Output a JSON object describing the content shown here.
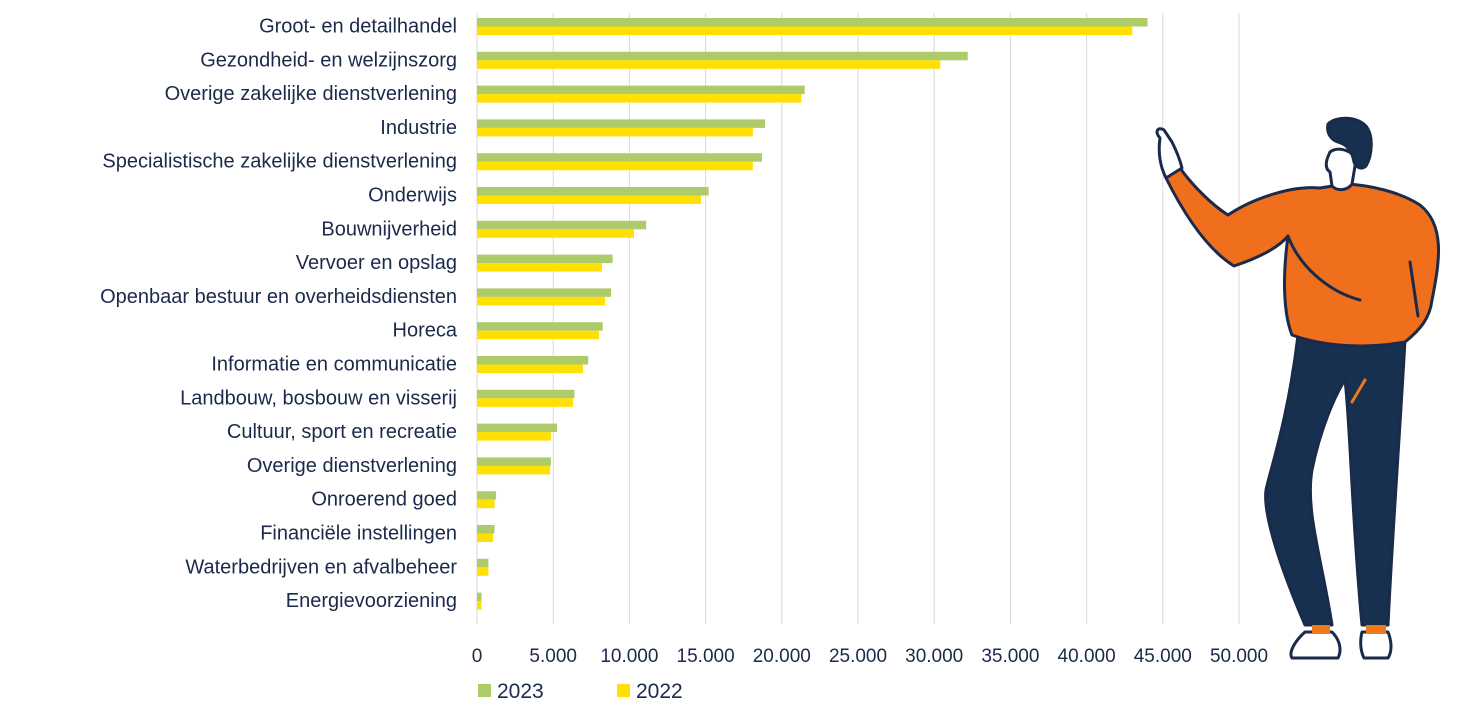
{
  "colors": {
    "series_2023": "#aecb6a",
    "series_2022": "#ffe000",
    "text": "#1b2a4a",
    "grid": "#d9d9d9"
  },
  "chart_data": {
    "type": "bar",
    "orientation": "horizontal",
    "categories": [
      "Groot- en detailhandel",
      "Gezondheid- en welzijnszorg",
      "Overige zakelijke dienstverlening",
      "Industrie",
      "Specialistische zakelijke dienstverlening",
      "Onderwijs",
      "Bouwnijverheid",
      "Vervoer en opslag",
      "Openbaar bestuur en overheidsdiensten",
      "Horeca",
      "Informatie en communicatie",
      "Landbouw, bosbouw en visserij",
      "Cultuur, sport en recreatie",
      "Overige dienstverlening",
      "Onroerend goed",
      "Financiële instellingen",
      "Waterbedrijven en afvalbeheer",
      "Energievoorziening"
    ],
    "series": [
      {
        "name": "2023",
        "values": [
          44000,
          32200,
          21500,
          18900,
          18700,
          15200,
          11100,
          8900,
          8800,
          8250,
          7300,
          6400,
          5250,
          4850,
          1250,
          1150,
          750,
          300
        ]
      },
      {
        "name": "2022",
        "values": [
          43000,
          30400,
          21300,
          18100,
          18100,
          14700,
          10300,
          8200,
          8400,
          8000,
          6950,
          6300,
          4850,
          4800,
          1150,
          1050,
          750,
          300
        ]
      }
    ],
    "xlim": [
      0,
      50000
    ],
    "ticks": [
      "0",
      "5.000",
      "10.000",
      "15.000",
      "20.000",
      "25.000",
      "30.000",
      "35.000",
      "40.000",
      "45.000",
      "50.000"
    ],
    "legend_position": "bottom-left",
    "grid": true
  },
  "illustration": {
    "name": "person-pointing-illustration"
  }
}
